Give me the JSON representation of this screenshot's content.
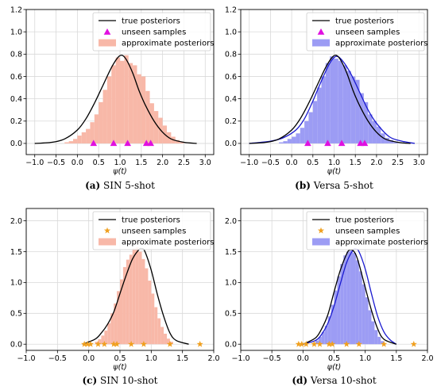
{
  "chart_data": [
    {
      "type": "histogram+line+scatter",
      "caption_tag": "(a)",
      "caption_text": "SIN 5-shot",
      "xlabel": "ψ(t)",
      "xlim": [
        -1.2,
        3.2
      ],
      "ylim": [
        -0.1,
        1.2
      ],
      "xticks": [
        -1.0,
        -0.5,
        0.0,
        0.5,
        1.0,
        1.5,
        2.0,
        2.5,
        3.0
      ],
      "yticks": [
        0.0,
        0.2,
        0.4,
        0.6,
        0.8,
        1.0,
        1.2
      ],
      "tick_decimals": 1,
      "grid": true,
      "legend_position": "top-right",
      "legend": [
        "true posteriors",
        "unseen samples",
        "approximate posteriors"
      ],
      "hist_color": "#f8b8a8",
      "marker": "triangle",
      "marker_color": "#e010e0",
      "bins_edges": [
        -0.3,
        -0.2,
        -0.1,
        0.0,
        0.1,
        0.2,
        0.3,
        0.4,
        0.5,
        0.6,
        0.7,
        0.8,
        0.9,
        1.0,
        1.1,
        1.2,
        1.3,
        1.4,
        1.5,
        1.6,
        1.7,
        1.8,
        1.9,
        2.0,
        2.1,
        2.2,
        2.3,
        2.4,
        2.5
      ],
      "bins_heights": [
        0.01,
        0.02,
        0.04,
        0.07,
        0.1,
        0.13,
        0.19,
        0.26,
        0.37,
        0.48,
        0.6,
        0.7,
        0.77,
        0.74,
        0.79,
        0.72,
        0.7,
        0.62,
        0.6,
        0.47,
        0.36,
        0.29,
        0.23,
        0.16,
        0.1,
        0.06,
        0.03,
        0.01
      ],
      "true_posterior": {
        "x": [
          -1.0,
          -0.6,
          -0.3,
          0.0,
          0.2,
          0.4,
          0.6,
          0.8,
          0.95,
          1.05,
          1.15,
          1.3,
          1.45,
          1.6,
          1.8,
          2.0,
          2.2,
          2.5,
          2.8
        ],
        "y": [
          0.0,
          0.01,
          0.04,
          0.12,
          0.22,
          0.36,
          0.52,
          0.68,
          0.77,
          0.79,
          0.75,
          0.63,
          0.47,
          0.34,
          0.2,
          0.1,
          0.04,
          0.01,
          0.0
        ]
      },
      "samples": [
        0.38,
        0.85,
        1.18,
        1.62,
        1.72
      ]
    },
    {
      "type": "histogram+line+scatter",
      "caption_tag": "(b)",
      "caption_text": "Versa 5-shot",
      "xlabel": "ψ(t)",
      "xlim": [
        -1.2,
        3.2
      ],
      "ylim": [
        -0.1,
        1.2
      ],
      "xticks": [
        -1.0,
        -0.5,
        0.0,
        0.5,
        1.0,
        1.5,
        2.0,
        2.5,
        3.0
      ],
      "yticks": [
        0.0,
        0.2,
        0.4,
        0.6,
        0.8,
        1.0,
        1.2
      ],
      "tick_decimals": 1,
      "grid": true,
      "legend_position": "top-right",
      "legend": [
        "true posteriors",
        "unseen samples",
        "approximate posteriors"
      ],
      "hist_color": "#9c9cf4",
      "marker": "triangle",
      "marker_color": "#e010e0",
      "bins_edges": [
        -0.3,
        -0.2,
        -0.1,
        0.0,
        0.1,
        0.2,
        0.3,
        0.4,
        0.5,
        0.6,
        0.7,
        0.8,
        0.9,
        1.0,
        1.1,
        1.2,
        1.3,
        1.4,
        1.5,
        1.6,
        1.7,
        1.8,
        1.9,
        2.0,
        2.1,
        2.2,
        2.3,
        2.4,
        2.5
      ],
      "bins_heights": [
        0.01,
        0.02,
        0.04,
        0.06,
        0.09,
        0.14,
        0.2,
        0.28,
        0.38,
        0.5,
        0.6,
        0.72,
        0.78,
        0.76,
        0.74,
        0.7,
        0.65,
        0.6,
        0.57,
        0.45,
        0.37,
        0.26,
        0.2,
        0.15,
        0.09,
        0.05,
        0.03,
        0.01
      ],
      "true_posterior": {
        "x": [
          -1.0,
          -0.6,
          -0.3,
          0.0,
          0.2,
          0.4,
          0.6,
          0.8,
          0.95,
          1.05,
          1.15,
          1.3,
          1.45,
          1.6,
          1.8,
          2.0,
          2.2,
          2.5,
          2.8
        ],
        "y": [
          0.0,
          0.01,
          0.04,
          0.12,
          0.22,
          0.36,
          0.52,
          0.68,
          0.77,
          0.79,
          0.75,
          0.63,
          0.47,
          0.34,
          0.2,
          0.1,
          0.04,
          0.01,
          0.0
        ]
      },
      "approx_curve": {
        "x": [
          -1.0,
          -0.5,
          -0.2,
          0.1,
          0.3,
          0.5,
          0.7,
          0.9,
          1.05,
          1.2,
          1.4,
          1.6,
          1.8,
          2.0,
          2.3,
          2.6,
          2.9
        ],
        "y": [
          0.0,
          0.02,
          0.05,
          0.12,
          0.22,
          0.38,
          0.56,
          0.72,
          0.78,
          0.74,
          0.62,
          0.46,
          0.3,
          0.18,
          0.06,
          0.02,
          0.0
        ]
      },
      "samples": [
        0.38,
        0.85,
        1.18,
        1.62,
        1.72
      ]
    },
    {
      "type": "histogram+line+scatter",
      "caption_tag": "(c)",
      "caption_text": "SIN 10-shot",
      "xlabel": "ψ(t)",
      "xlim": [
        -1.0,
        2.0
      ],
      "ylim": [
        -0.1,
        2.2
      ],
      "xticks": [
        -1.0,
        -0.5,
        0.0,
        0.5,
        1.0,
        1.5,
        2.0
      ],
      "yticks": [
        0.0,
        0.5,
        1.0,
        1.5,
        2.0
      ],
      "tick_decimals": 1,
      "grid": true,
      "legend_position": "top-right",
      "legend": [
        "true posteriors",
        "unseen samples",
        "approximate posteriors"
      ],
      "hist_color": "#f8b8a8",
      "marker": "star",
      "marker_color": "#f0a020",
      "bins_edges": [
        0.1,
        0.15,
        0.2,
        0.25,
        0.3,
        0.35,
        0.4,
        0.45,
        0.5,
        0.55,
        0.6,
        0.65,
        0.7,
        0.75,
        0.8,
        0.85,
        0.9,
        0.95,
        1.0,
        1.05,
        1.1,
        1.15,
        1.2,
        1.25,
        1.3,
        1.35
      ],
      "bins_heights": [
        0.04,
        0.08,
        0.14,
        0.22,
        0.34,
        0.5,
        0.66,
        0.86,
        1.05,
        1.25,
        1.37,
        1.45,
        1.55,
        1.57,
        1.5,
        1.38,
        1.23,
        1.03,
        0.82,
        0.6,
        0.42,
        0.28,
        0.17,
        0.09,
        0.04
      ],
      "true_posterior": {
        "x": [
          -0.1,
          0.1,
          0.2,
          0.3,
          0.4,
          0.5,
          0.6,
          0.7,
          0.8,
          0.85,
          0.9,
          1.0,
          1.1,
          1.2,
          1.3,
          1.4,
          1.6
        ],
        "y": [
          0.0,
          0.08,
          0.18,
          0.32,
          0.52,
          0.82,
          1.12,
          1.38,
          1.53,
          1.55,
          1.5,
          1.2,
          0.8,
          0.45,
          0.18,
          0.06,
          0.0
        ]
      },
      "samples": [
        -0.07,
        -0.02,
        0.03,
        0.15,
        0.25,
        0.4,
        0.45,
        0.68,
        0.88,
        1.3,
        1.78
      ]
    },
    {
      "type": "histogram+line+scatter",
      "caption_tag": "(d)",
      "caption_text": "Versa 10-shot",
      "xlabel": "ψ(t)",
      "xlim": [
        -1.0,
        2.0
      ],
      "ylim": [
        -0.1,
        2.2
      ],
      "xticks": [
        -1.0,
        -0.5,
        0.0,
        0.5,
        1.0,
        1.5,
        2.0
      ],
      "yticks": [
        0.0,
        0.5,
        1.0,
        1.5,
        2.0
      ],
      "tick_decimals": 1,
      "grid": true,
      "legend_position": "top-right",
      "legend": [
        "true posteriors",
        "unseen samples",
        "approximate posteriors"
      ],
      "hist_color": "#9c9cf4",
      "marker": "star",
      "marker_color": "#f0a020",
      "bins_edges": [
        0.2,
        0.25,
        0.3,
        0.35,
        0.4,
        0.45,
        0.5,
        0.55,
        0.6,
        0.65,
        0.7,
        0.75,
        0.8,
        0.85,
        0.9,
        0.95,
        1.0,
        1.05,
        1.1,
        1.15,
        1.2,
        1.25,
        1.3
      ],
      "bins_heights": [
        0.06,
        0.12,
        0.2,
        0.3,
        0.45,
        0.64,
        0.87,
        1.1,
        1.3,
        1.44,
        1.5,
        1.52,
        1.48,
        1.36,
        1.18,
        0.97,
        0.76,
        0.55,
        0.37,
        0.23,
        0.12,
        0.05
      ],
      "true_posterior": {
        "x": [
          0.0,
          0.2,
          0.3,
          0.4,
          0.5,
          0.6,
          0.7,
          0.75,
          0.8,
          0.85,
          0.9,
          1.0,
          1.1,
          1.2,
          1.3,
          1.5
        ],
        "y": [
          0.0,
          0.1,
          0.25,
          0.48,
          0.85,
          1.2,
          1.46,
          1.53,
          1.52,
          1.45,
          1.3,
          0.92,
          0.55,
          0.25,
          0.08,
          0.0
        ]
      },
      "approx_curve": {
        "x": [
          0.0,
          0.2,
          0.3,
          0.4,
          0.5,
          0.6,
          0.7,
          0.8,
          0.85,
          0.9,
          1.0,
          1.1,
          1.2,
          1.3,
          1.4,
          1.5
        ],
        "y": [
          0.0,
          0.06,
          0.16,
          0.34,
          0.62,
          0.98,
          1.32,
          1.52,
          1.54,
          1.5,
          1.22,
          0.82,
          0.45,
          0.2,
          0.07,
          0.0
        ]
      },
      "samples": [
        -0.07,
        -0.02,
        0.05,
        0.18,
        0.27,
        0.42,
        0.47,
        0.7,
        0.9,
        1.3,
        1.78
      ]
    }
  ]
}
